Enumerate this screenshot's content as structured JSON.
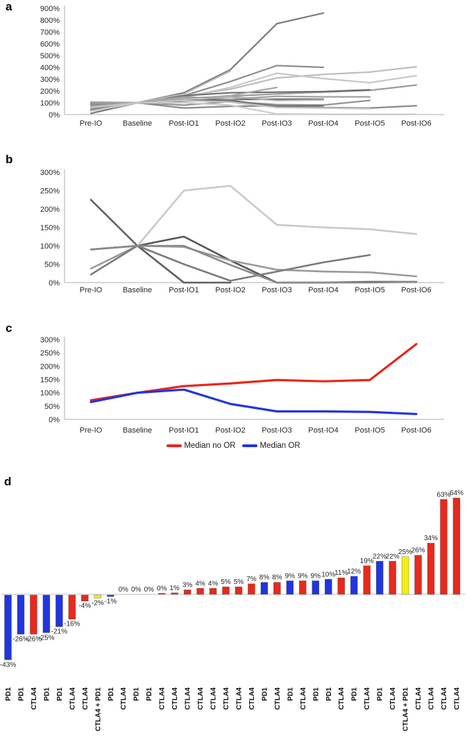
{
  "panels": [
    {
      "letter": "a"
    },
    {
      "letter": "b"
    },
    {
      "letter": "c"
    },
    {
      "letter": "d"
    }
  ],
  "chart_data": [
    {
      "panel": "a",
      "type": "line",
      "x_categories": [
        "Pre-IO",
        "Baseline",
        "Post-IO1",
        "Post-IO2",
        "Post-IO3",
        "Post-IO4",
        "Post-IO5",
        "Post-IO6"
      ],
      "y_ticks": [
        "0%",
        "100%",
        "200%",
        "300%",
        "400%",
        "500%",
        "600%",
        "700%",
        "800%",
        "900%"
      ],
      "ylim": [
        0,
        900
      ],
      "grid": false,
      "legend_position": "none",
      "series": [
        {
          "color": "#7a7a7a",
          "values": [
            10,
            100,
            185,
            380,
            770,
            860,
            null,
            null
          ]
        },
        {
          "color": "#8c8c8c",
          "values": [
            95,
            100,
            160,
            280,
            415,
            400,
            null,
            null
          ]
        },
        {
          "color": "#bdbdbd",
          "values": [
            70,
            100,
            155,
            215,
            310,
            340,
            360,
            405
          ]
        },
        {
          "color": "#c7c7c7",
          "values": [
            60,
            100,
            145,
            230,
            350,
            305,
            270,
            330
          ]
        },
        {
          "color": "#9b9b9b",
          "values": [
            80,
            100,
            135,
            155,
            175,
            190,
            205,
            250
          ]
        },
        {
          "color": "#6d6d6d",
          "values": [
            90,
            100,
            160,
            185,
            190,
            195,
            210,
            null
          ]
        },
        {
          "color": "#b3b3b3",
          "values": [
            50,
            100,
            175,
            370,
            null,
            null,
            null,
            null
          ]
        },
        {
          "color": "#a6a6a6",
          "values": [
            105,
            100,
            135,
            160,
            230,
            null,
            null,
            null
          ]
        },
        {
          "color": "#606060",
          "values": [
            100,
            100,
            120,
            128,
            130,
            130,
            null,
            null
          ]
        },
        {
          "color": "#949494",
          "values": [
            85,
            100,
            80,
            110,
            85,
            80,
            120,
            null
          ]
        },
        {
          "color": "#8a8a8a",
          "values": [
            70,
            100,
            55,
            70,
            75,
            60,
            55,
            75
          ]
        },
        {
          "color": "#747474",
          "values": [
            40,
            100,
            115,
            120,
            70,
            75,
            null,
            null
          ]
        },
        {
          "color": "#aeaeae",
          "values": [
            55,
            100,
            140,
            150,
            120,
            125,
            null,
            null
          ]
        },
        {
          "color": "#cccccc",
          "values": [
            30,
            100,
            100,
            80,
            5,
            2,
            2,
            2
          ]
        },
        {
          "color": "#a0a0a0",
          "values": [
            100,
            100,
            150,
            130,
            155,
            150,
            150,
            null
          ]
        },
        {
          "color": "#c2c2c2",
          "values": [
            65,
            100,
            120,
            105,
            60,
            55,
            50,
            null
          ]
        }
      ]
    },
    {
      "panel": "b",
      "type": "line",
      "x_categories": [
        "Pre-IO",
        "Baseline",
        "Post-IO1",
        "Post-IO2",
        "Post-IO3",
        "Post-IO4",
        "Post-IO5",
        "Post-IO6"
      ],
      "y_ticks": [
        "0%",
        "50%",
        "100%",
        "150%",
        "200%",
        "250%",
        "300%"
      ],
      "ylim": [
        0,
        300
      ],
      "grid": false,
      "legend_position": "none",
      "series": [
        {
          "color": "#5e5e5e",
          "values": [
            225,
            100,
            0,
            0,
            null,
            null,
            null,
            null
          ]
        },
        {
          "color": "#565656",
          "values": [
            90,
            100,
            125,
            60,
            0,
            0,
            2,
            2
          ]
        },
        {
          "color": "#9a9a9a",
          "values": [
            38,
            100,
            97,
            60,
            35,
            30,
            28,
            17
          ]
        },
        {
          "color": "#7b7b7b",
          "values": [
            22,
            100,
            50,
            5,
            30,
            55,
            75,
            null
          ]
        },
        {
          "color": "#c9c9c9",
          "values": [
            null,
            100,
            250,
            263,
            157,
            150,
            145,
            132
          ]
        },
        {
          "color": "#8a8a8a",
          "values": [
            90,
            100,
            100,
            48,
            0,
            0,
            0,
            2
          ]
        }
      ]
    },
    {
      "panel": "c",
      "type": "line",
      "x_categories": [
        "Pre-IO",
        "Baseline",
        "Post-IO1",
        "Post-IO2",
        "Post-IO3",
        "Post-IO4",
        "Post-IO5",
        "Post-IO6"
      ],
      "y_ticks": [
        "0%",
        "50%",
        "100%",
        "150%",
        "200%",
        "250%",
        "300%"
      ],
      "ylim": [
        0,
        300
      ],
      "grid": false,
      "legend_position": "bottom",
      "legend": [
        {
          "label": "Median no OR",
          "color": "#e8261b"
        },
        {
          "label": "Median OR",
          "color": "#2135de"
        }
      ],
      "series": [
        {
          "name": "Median no OR",
          "color": "#e8261b",
          "values": [
            72,
            100,
            125,
            135,
            148,
            143,
            148,
            283
          ]
        },
        {
          "name": "Median OR",
          "color": "#2135de",
          "values": [
            65,
            100,
            112,
            58,
            30,
            30,
            28,
            20
          ]
        }
      ]
    },
    {
      "panel": "d",
      "type": "bar",
      "palette": {
        "r": "#e8291c",
        "b": "#2135de",
        "y": "#f2ee10"
      },
      "color_meaning": {
        "r": "CTLA4",
        "b": "PD1",
        "y": "CTLA4 + PD1"
      },
      "bars": [
        {
          "g": "PD1",
          "l": "-43%",
          "v": -43,
          "c": "b"
        },
        {
          "g": "PD1",
          "l": "-26%",
          "v": -26,
          "c": "b"
        },
        {
          "g": "CTLA4",
          "l": "-26%",
          "v": -26,
          "c": "r"
        },
        {
          "g": "PD1",
          "l": "-25%",
          "v": -25,
          "c": "b"
        },
        {
          "g": "PD1",
          "l": "-21%",
          "v": -21,
          "c": "b"
        },
        {
          "g": "CTLA4",
          "l": "-16%",
          "v": -16,
          "c": "r"
        },
        {
          "g": "CTLA4",
          "l": "-4%",
          "v": -4,
          "c": "r"
        },
        {
          "g": "CTLA4 + PD1",
          "l": "-2%",
          "v": -2,
          "c": "y"
        },
        {
          "g": "PD1",
          "l": "-1%",
          "v": -1,
          "c": "b"
        },
        {
          "g": "CTLA4",
          "l": "0%",
          "v": 0,
          "c": "r"
        },
        {
          "g": "PD1",
          "l": "0%",
          "v": 0,
          "c": "b"
        },
        {
          "g": "PD1",
          "l": "0%",
          "v": 0,
          "c": "b"
        },
        {
          "g": "CTLA4",
          "l": "0%",
          "v": 0,
          "c": "r",
          "stub": true
        },
        {
          "g": "CTLA4",
          "l": "1%",
          "v": 1,
          "c": "r"
        },
        {
          "g": "CTLA4",
          "l": "3%",
          "v": 3,
          "c": "r"
        },
        {
          "g": "CTLA4",
          "l": "4%",
          "v": 4,
          "c": "r"
        },
        {
          "g": "CTLA4",
          "l": "4%",
          "v": 4,
          "c": "r"
        },
        {
          "g": "CTLA4",
          "l": "5%",
          "v": 5,
          "c": "r"
        },
        {
          "g": "CTLA4",
          "l": "5%",
          "v": 5,
          "c": "r"
        },
        {
          "g": "CTLA4",
          "l": "7%",
          "v": 7,
          "c": "r"
        },
        {
          "g": "PD1",
          "l": "8%",
          "v": 8,
          "c": "b"
        },
        {
          "g": "CTLA4",
          "l": "8%",
          "v": 8,
          "c": "r"
        },
        {
          "g": "PD1",
          "l": "9%",
          "v": 9,
          "c": "b"
        },
        {
          "g": "CTLA4",
          "l": "9%",
          "v": 9,
          "c": "r"
        },
        {
          "g": "PD1",
          "l": "9%",
          "v": 9,
          "c": "b"
        },
        {
          "g": "PD1",
          "l": "10%",
          "v": 10,
          "c": "b"
        },
        {
          "g": "CTLA4",
          "l": "11%",
          "v": 11,
          "c": "r"
        },
        {
          "g": "PD1",
          "l": "12%",
          "v": 12,
          "c": "b"
        },
        {
          "g": "CTLA4",
          "l": "19%",
          "v": 19,
          "c": "r"
        },
        {
          "g": "PD1",
          "l": "22%",
          "v": 22,
          "c": "b"
        },
        {
          "g": "CTLA4",
          "l": "22%",
          "v": 22,
          "c": "r"
        },
        {
          "g": "CTLA4 + PD1",
          "l": "25%",
          "v": 25,
          "c": "y"
        },
        {
          "g": "CTLA4",
          "l": "26%",
          "v": 26,
          "c": "r"
        },
        {
          "g": "CTLA4",
          "l": "34%",
          "v": 34,
          "c": "r"
        },
        {
          "g": "CTLA4",
          "l": "63%",
          "v": 63,
          "c": "r"
        },
        {
          "g": "CTLA4",
          "l": "64%",
          "v": 64,
          "c": "r"
        }
      ]
    }
  ]
}
